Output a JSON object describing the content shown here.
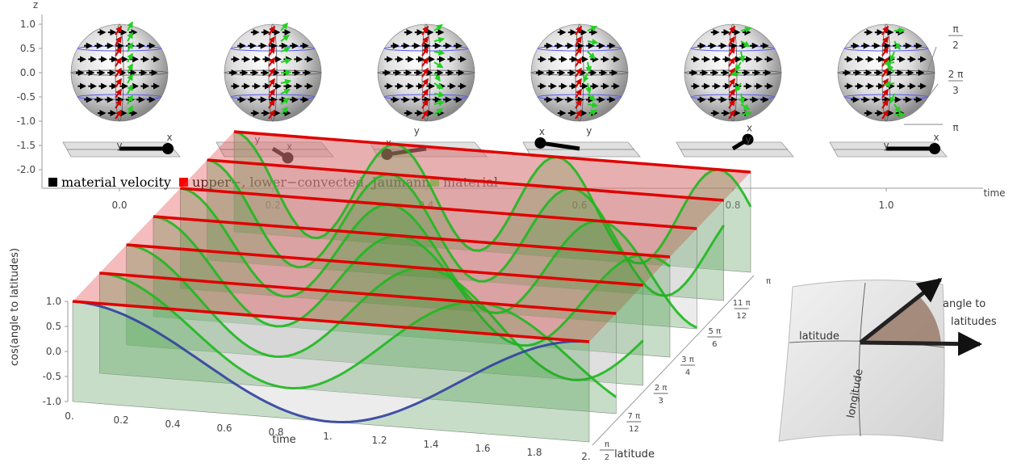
{
  "chart_data": [
    {
      "type": "scatter",
      "ylabel": "z",
      "xlabel": "time",
      "yticks": [
        "1.0",
        "0.5",
        "0.0",
        "-0.5",
        "-1.0",
        "-1.5",
        "-2.0"
      ],
      "xticks": [
        "0.0",
        "0.2",
        "0.4",
        "0.6",
        "0.8",
        "1.0"
      ],
      "ylim": [
        -2.2,
        1.1
      ],
      "xlim": [
        -0.1,
        1.1
      ],
      "sphere_times": [
        0.0,
        0.2,
        0.4,
        0.6,
        0.8,
        1.0
      ],
      "frame_axis_labels": [
        "x",
        "y"
      ],
      "latitude_labels": [
        {
          "num": "π",
          "den": "2"
        },
        {
          "num": "2 π",
          "den": "3"
        },
        {
          "num": "π",
          "den": ""
        }
      ],
      "legend": [
        {
          "label": "material velocity",
          "color": "#000000"
        },
        {
          "label": "upper−, lower−convected, Jaumann",
          "color": "#ff0000"
        },
        {
          "label": "material",
          "color": "#00ff00"
        }
      ]
    },
    {
      "type": "line",
      "zlabel": "cos(angle to latitudes)",
      "xlabel": "time",
      "ylabel": "latitude",
      "zticks": [
        "1.0",
        "0.5",
        "0.0",
        "-0.5",
        "-1.0"
      ],
      "xticks": [
        "0.",
        "0.2",
        "0.4",
        "0.6",
        "0.8",
        "1.",
        "1.2",
        "1.4",
        "1.6",
        "1.8",
        "2."
      ],
      "yticks": [
        {
          "num": "π",
          "den": "2"
        },
        {
          "num": "7 π",
          "den": "12"
        },
        {
          "num": "2 π",
          "den": "3"
        },
        {
          "num": "3 π",
          "den": "4"
        },
        {
          "num": "5 π",
          "den": "6"
        },
        {
          "num": "11 π",
          "den": "12"
        },
        {
          "num": "π",
          "den": ""
        }
      ],
      "series": [
        {
          "name": "upper−, lower−convected, Jaumann",
          "color": "#e00000",
          "constant_value": 1.0
        },
        {
          "name": "material",
          "color": "#1cc01c"
        }
      ]
    }
  ],
  "inset": {
    "labels": [
      "latitude",
      "longitude",
      "angle to",
      "latitudes"
    ]
  }
}
